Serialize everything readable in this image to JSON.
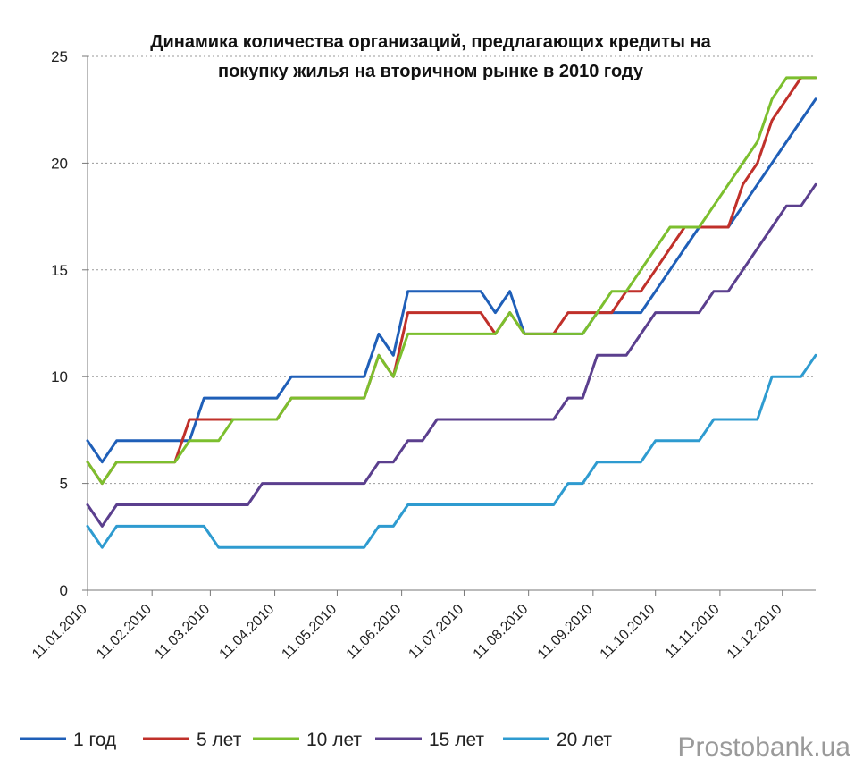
{
  "watermark": "Prostobank.ua",
  "chart_data": {
    "type": "line",
    "title_lines": [
      "Динамика количества  организаций, предлагающих кредиты на",
      "покупку жилья на вторичном  рынке в 2010 году"
    ],
    "xlabel": "",
    "ylabel": "",
    "ylim": [
      0,
      25
    ],
    "yticks": [
      "0",
      "5",
      "10",
      "15",
      "20",
      "25"
    ],
    "x_ticks": [
      "11.01.2010",
      "11.02.2010",
      "11.03.2010",
      "11.04.2010",
      "11.05.2010",
      "11.06.2010",
      "11.07.2010",
      "11.08.2010",
      "11.09.2010",
      "11.10.2010",
      "11.11.2010",
      "11.12.2010"
    ],
    "x_range_weeks": [
      0,
      50
    ],
    "grid": "horizontal dotted",
    "legend_position": "bottom",
    "series": [
      {
        "name": "1 год",
        "color": "#1F5FB8",
        "x": [
          0,
          1,
          2,
          3,
          4,
          5,
          6,
          7,
          8,
          9,
          10,
          11,
          12,
          13,
          14,
          15,
          16,
          17,
          18,
          19,
          20,
          21,
          22,
          23,
          24,
          25,
          26,
          27,
          28,
          29,
          30,
          31,
          32,
          33,
          34,
          35,
          36,
          37,
          38,
          39,
          40,
          41,
          42,
          43,
          44,
          45,
          46,
          47,
          48,
          49,
          50
        ],
        "y": [
          7,
          6,
          7,
          7,
          7,
          7,
          7,
          7,
          9,
          9,
          9,
          9,
          9,
          9,
          10,
          10,
          10,
          10,
          10,
          10,
          12,
          11,
          14,
          14,
          14,
          14,
          14,
          14,
          13,
          14,
          12,
          12,
          12,
          12,
          12,
          13,
          13,
          13,
          13,
          14,
          15,
          16,
          17,
          17,
          17,
          18,
          19,
          20,
          21,
          22,
          23
        ]
      },
      {
        "name": "5 лет",
        "color": "#C0302A",
        "x": [
          0,
          1,
          2,
          3,
          4,
          5,
          6,
          7,
          8,
          9,
          10,
          11,
          12,
          13,
          14,
          15,
          16,
          17,
          18,
          19,
          20,
          21,
          22,
          23,
          24,
          25,
          26,
          27,
          28,
          29,
          30,
          31,
          32,
          33,
          34,
          35,
          36,
          37,
          38,
          39,
          40,
          41,
          42,
          43,
          44,
          45,
          46,
          47,
          48,
          49,
          50
        ],
        "y": [
          6,
          5,
          6,
          6,
          6,
          6,
          6,
          8,
          8,
          8,
          8,
          8,
          8,
          8,
          9,
          9,
          9,
          9,
          9,
          9,
          11,
          10,
          13,
          13,
          13,
          13,
          13,
          13,
          12,
          13,
          12,
          12,
          12,
          13,
          13,
          13,
          13,
          14,
          14,
          15,
          16,
          17,
          17,
          17,
          17,
          19,
          20,
          22,
          23,
          24,
          24
        ]
      },
      {
        "name": "10 лет",
        "color": "#7CBF2E",
        "x": [
          0,
          1,
          2,
          3,
          4,
          5,
          6,
          7,
          8,
          9,
          10,
          11,
          12,
          13,
          14,
          15,
          16,
          17,
          18,
          19,
          20,
          21,
          22,
          23,
          24,
          25,
          26,
          27,
          28,
          29,
          30,
          31,
          32,
          33,
          34,
          35,
          36,
          37,
          38,
          39,
          40,
          41,
          42,
          43,
          44,
          45,
          46,
          47,
          48,
          49,
          50
        ],
        "y": [
          6,
          5,
          6,
          6,
          6,
          6,
          6,
          7,
          7,
          7,
          8,
          8,
          8,
          8,
          9,
          9,
          9,
          9,
          9,
          9,
          11,
          10,
          12,
          12,
          12,
          12,
          12,
          12,
          12,
          13,
          12,
          12,
          12,
          12,
          12,
          13,
          14,
          14,
          15,
          16,
          17,
          17,
          17,
          18,
          19,
          20,
          21,
          23,
          24,
          24,
          24
        ]
      },
      {
        "name": "15 лет",
        "color": "#5B3F8E",
        "x": [
          0,
          1,
          2,
          3,
          4,
          5,
          6,
          7,
          8,
          9,
          10,
          11,
          12,
          13,
          14,
          15,
          16,
          17,
          18,
          19,
          20,
          21,
          22,
          23,
          24,
          25,
          26,
          27,
          28,
          29,
          30,
          31,
          32,
          33,
          34,
          35,
          36,
          37,
          38,
          39,
          40,
          41,
          42,
          43,
          44,
          45,
          46,
          47,
          48,
          49,
          50
        ],
        "y": [
          4,
          3,
          4,
          4,
          4,
          4,
          4,
          4,
          4,
          4,
          4,
          4,
          5,
          5,
          5,
          5,
          5,
          5,
          5,
          5,
          6,
          6,
          7,
          7,
          8,
          8,
          8,
          8,
          8,
          8,
          8,
          8,
          8,
          9,
          9,
          11,
          11,
          11,
          12,
          13,
          13,
          13,
          13,
          14,
          14,
          15,
          16,
          17,
          18,
          18,
          19
        ]
      },
      {
        "name": "20 лет",
        "color": "#2E9BD0",
        "x": [
          0,
          1,
          2,
          3,
          4,
          5,
          6,
          7,
          8,
          9,
          10,
          11,
          12,
          13,
          14,
          15,
          16,
          17,
          18,
          19,
          20,
          21,
          22,
          23,
          24,
          25,
          26,
          27,
          28,
          29,
          30,
          31,
          32,
          33,
          34,
          35,
          36,
          37,
          38,
          39,
          40,
          41,
          42,
          43,
          44,
          45,
          46,
          47,
          48,
          49,
          50
        ],
        "y": [
          3,
          2,
          3,
          3,
          3,
          3,
          3,
          3,
          3,
          2,
          2,
          2,
          2,
          2,
          2,
          2,
          2,
          2,
          2,
          2,
          3,
          3,
          4,
          4,
          4,
          4,
          4,
          4,
          4,
          4,
          4,
          4,
          4,
          5,
          5,
          6,
          6,
          6,
          6,
          7,
          7,
          7,
          7,
          8,
          8,
          8,
          8,
          10,
          10,
          10,
          11
        ]
      }
    ]
  }
}
